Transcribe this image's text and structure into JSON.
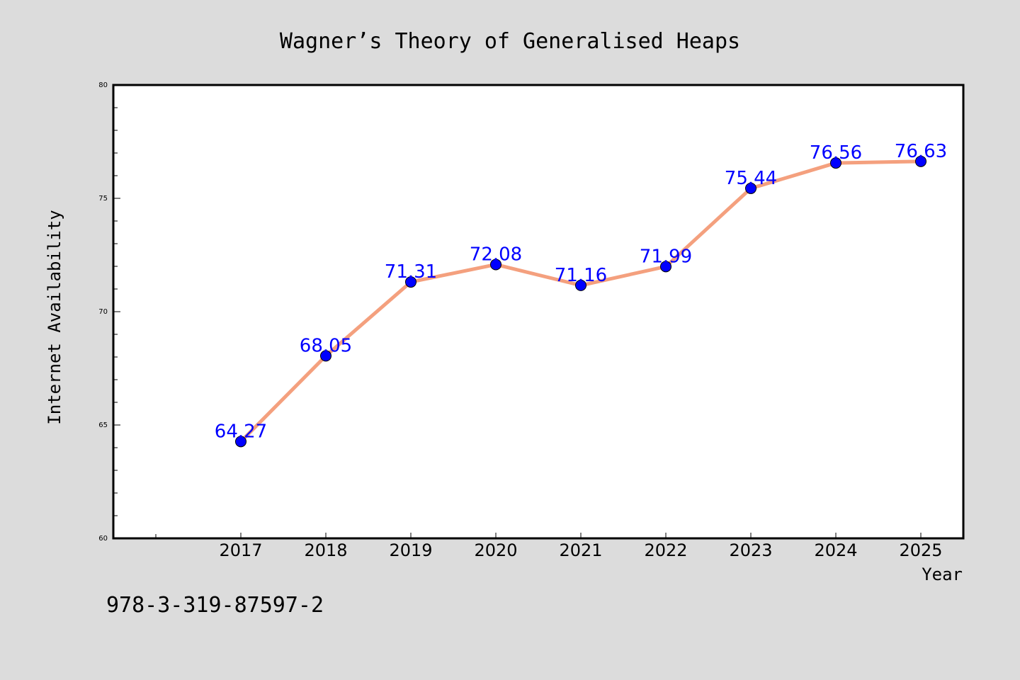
{
  "chart_data": {
    "type": "line",
    "title": "Wagner’s Theory of Generalised Heaps",
    "xlabel": "Year",
    "ylabel": "Internet Availability",
    "x": [
      "2017",
      "2018",
      "2019",
      "2020",
      "2021",
      "2022",
      "2023",
      "2024",
      "2025"
    ],
    "series": [
      {
        "values": [
          64.27,
          68.05,
          71.31,
          72.08,
          71.16,
          71.99,
          75.44,
          76.56,
          76.63
        ],
        "line_color": "#f4a07e",
        "marker_color": "#0000ff"
      }
    ],
    "data_labels": [
      "64.27",
      "68.05",
      "71.31",
      "72.08",
      "71.16",
      "71.99",
      "75.44",
      "76.56",
      "76.63"
    ],
    "label_color": "#0000ff",
    "ylim": [
      60,
      80
    ],
    "y_ticks": [
      "60",
      "65",
      "70",
      "75",
      "80"
    ],
    "grid": false,
    "legend": "none"
  },
  "footer": {
    "code": "978-3-319-87597-2"
  },
  "colors": {
    "background": "#dcdcdc",
    "plot_background": "#ffffff",
    "axis": "#000000"
  }
}
